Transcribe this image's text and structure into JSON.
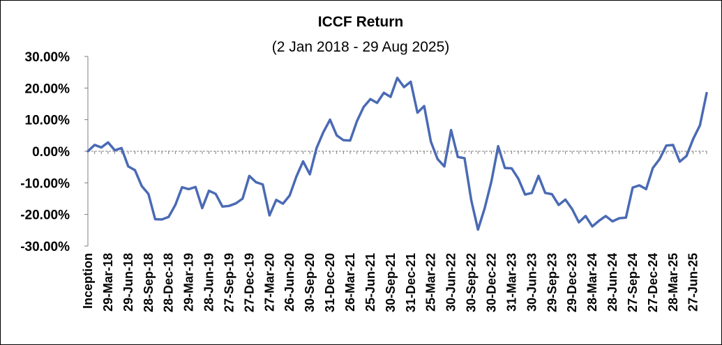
{
  "chart_data": {
    "type": "line",
    "title": "ICCF Return",
    "subtitle": "(2 Jan 2018 - 29 Aug 2025)",
    "xlabel": "",
    "ylabel": "",
    "ylim": [
      -30,
      30
    ],
    "y_ticks": [
      30,
      20,
      10,
      0,
      -10,
      -20,
      -30
    ],
    "y_tick_labels": [
      "30.00%",
      "20.00%",
      "10.00%",
      "0.00%",
      "-10.00%",
      "-20.00%",
      "-30.00%"
    ],
    "x_tick_labels": [
      "Inception",
      "29-Mar-18",
      "29-Jun-18",
      "28-Sep-18",
      "28-Dec-18",
      "29-Mar-19",
      "28-Jun-19",
      "27-Sep-19",
      "27-Dec-19",
      "27-Mar-20",
      "26-Jun-20",
      "30-Sep-20",
      "31-Dec-20",
      "26-Mar-21",
      "25-Jun-21",
      "30-Sep-21",
      "31-Dec-21",
      "25-Mar-22",
      "30-Jun-22",
      "30-Sep-22",
      "30-Dec-22",
      "31-Mar-23",
      "30-Jun-23",
      "29-Sep-23",
      "29-Dec-23",
      "28-Mar-24",
      "28-Jun-24",
      "27-Sep-24",
      "27-Dec-24",
      "28-Mar-25",
      "27-Jun-25"
    ],
    "x_tick_positions": [
      0,
      3,
      6,
      9,
      12,
      15,
      18,
      21,
      24,
      27,
      30,
      33,
      36,
      39,
      42,
      45,
      48,
      51,
      54,
      57,
      60,
      63,
      66,
      69,
      72,
      75,
      78,
      81,
      84,
      87,
      90
    ],
    "grid": false,
    "zero_line": "dashed",
    "series": [
      {
        "color": "#4a6ab4",
        "values": [
          0.0,
          2.0,
          1.2,
          2.8,
          0.3,
          1.0,
          -4.8,
          -6.0,
          -11.0,
          -13.5,
          -21.5,
          -21.6,
          -20.8,
          -17.0,
          -11.4,
          -12.0,
          -11.3,
          -18.0,
          -12.5,
          -13.5,
          -17.5,
          -17.3,
          -16.5,
          -15.0,
          -7.8,
          -9.8,
          -10.5,
          -20.3,
          -15.4,
          -16.6,
          -14.0,
          -8.0,
          -3.2,
          -7.3,
          1.0,
          6.0,
          10.0,
          5.0,
          3.5,
          3.4,
          9.5,
          14.0,
          16.5,
          15.3,
          18.5,
          17.2,
          23.2,
          20.3,
          22.0,
          12.2,
          14.3,
          3.0,
          -2.5,
          -4.8,
          6.7,
          -1.8,
          -2.2,
          -15.5,
          -24.8,
          -18.0,
          -9.5,
          1.6,
          -5.3,
          -5.4,
          -8.7,
          -13.7,
          -13.2,
          -7.8,
          -13.2,
          -13.6,
          -17.0,
          -15.3,
          -18.3,
          -22.5,
          -20.5,
          -23.8,
          -22.0,
          -20.5,
          -22.2,
          -21.2,
          -21.0,
          -11.5,
          -10.8,
          -12.0,
          -5.3,
          -2.5,
          1.8,
          2.0,
          -3.3,
          -1.5,
          3.9,
          8.2,
          18.4
        ]
      }
    ]
  }
}
